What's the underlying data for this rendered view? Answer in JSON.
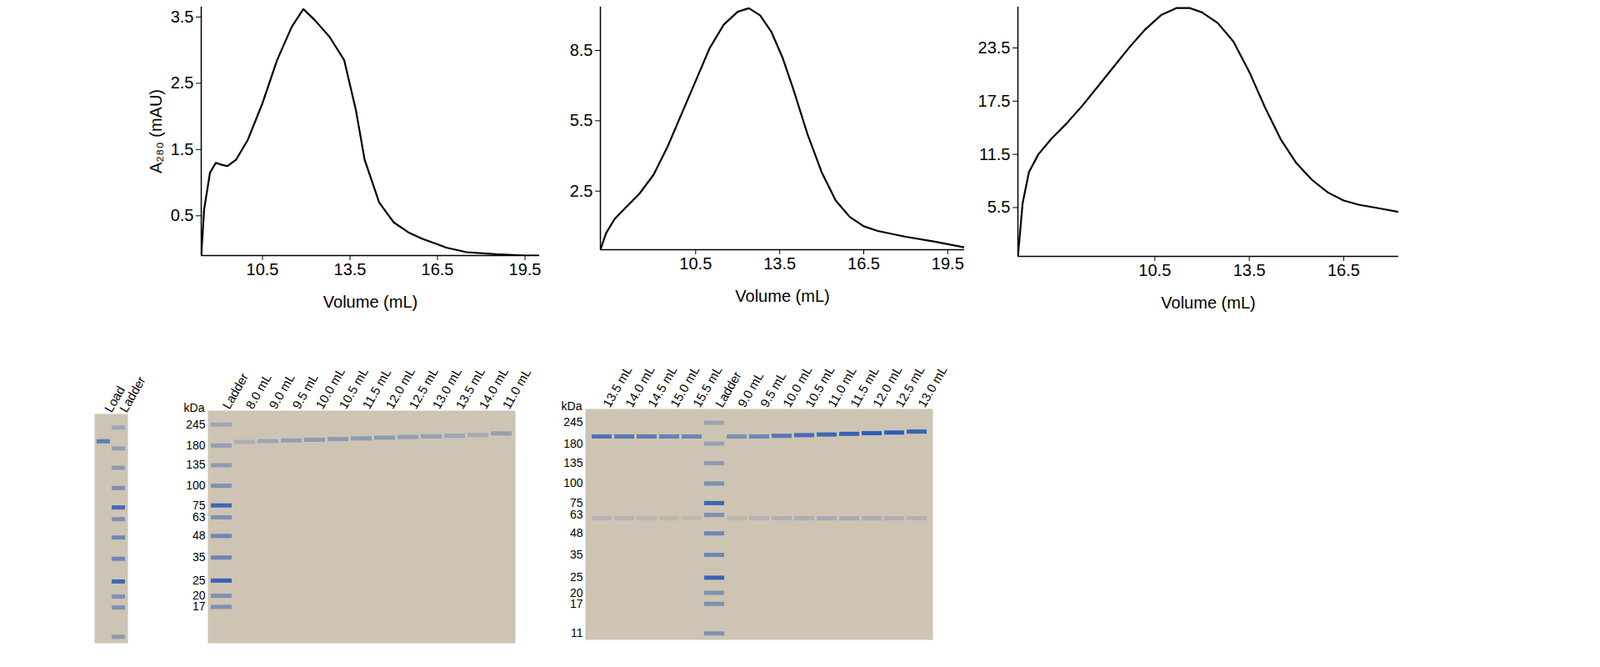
{
  "chart_data": [
    {
      "type": "line",
      "xlabel": "Volume (mL)",
      "ylabel": "A₂₈₀ (mAU)",
      "color": "#000000",
      "x": [
        8.4,
        8.5,
        8.7,
        8.9,
        9.1,
        9.3,
        9.6,
        10.0,
        10.5,
        11.0,
        11.5,
        11.9,
        12.3,
        12.8,
        13.3,
        13.7,
        14.0,
        14.5,
        15.0,
        15.5,
        16.0,
        16.5,
        16.8,
        17.5,
        18.5,
        19.5,
        20.0
      ],
      "values": [
        -0.1,
        0.6,
        1.15,
        1.3,
        1.27,
        1.25,
        1.35,
        1.65,
        2.2,
        2.85,
        3.35,
        3.62,
        3.45,
        3.2,
        2.85,
        2.1,
        1.35,
        0.7,
        0.4,
        0.25,
        0.15,
        0.07,
        0.02,
        -0.05,
        -0.08,
        -0.1,
        -0.1
      ],
      "xlim": [
        8.4,
        20.0
      ],
      "ylim": [
        -0.1,
        3.65
      ],
      "xticks": [
        10.5,
        13.5,
        16.5,
        19.5
      ],
      "yticks": [
        0.5,
        1.5,
        2.5,
        3.5
      ]
    },
    {
      "type": "line",
      "xlabel": "Volume (mL)",
      "color": "#000000",
      "x": [
        7.1,
        7.3,
        7.6,
        8.0,
        8.5,
        9.0,
        9.5,
        10.0,
        10.5,
        11.0,
        11.5,
        12.0,
        12.4,
        12.8,
        13.2,
        13.6,
        14.0,
        14.5,
        15.0,
        15.5,
        16.0,
        16.5,
        17.0,
        18.0,
        19.0,
        20.1
      ],
      "values": [
        0,
        0.7,
        1.3,
        1.8,
        2.4,
        3.2,
        4.4,
        5.8,
        7.2,
        8.6,
        9.6,
        10.15,
        10.3,
        10.0,
        9.3,
        8.2,
        6.8,
        4.9,
        3.3,
        2.1,
        1.4,
        1.0,
        0.8,
        0.55,
        0.35,
        0.1
      ],
      "xlim": [
        7.1,
        20.1
      ],
      "ylim": [
        0,
        10.35
      ],
      "xticks": [
        10.5,
        13.5,
        16.5,
        19.5
      ],
      "yticks": [
        2.5,
        5.5,
        8.5
      ]
    },
    {
      "type": "line",
      "xlabel": "Volume (mL)",
      "color": "#000000",
      "x": [
        6.15,
        6.3,
        6.5,
        6.8,
        7.2,
        7.7,
        8.2,
        8.7,
        9.2,
        9.7,
        10.2,
        10.7,
        11.2,
        11.6,
        12.0,
        12.5,
        13.0,
        13.5,
        14.0,
        14.5,
        15.0,
        15.5,
        16.0,
        16.5,
        17.0,
        17.5,
        18.25
      ],
      "values": [
        0,
        6,
        9.5,
        11.5,
        13.2,
        15,
        17,
        19.2,
        21.4,
        23.6,
        25.6,
        27.2,
        28,
        28,
        27.5,
        26.3,
        24.2,
        20.8,
        16.8,
        13.2,
        10.5,
        8.6,
        7.2,
        6.3,
        5.8,
        5.5,
        5.0
      ],
      "xlim": [
        6.15,
        18.25
      ],
      "ylim": [
        0,
        28.1
      ],
      "xticks": [
        10.5,
        13.5,
        16.5
      ],
      "yticks": [
        5.5,
        11.5,
        17.5,
        23.5
      ]
    },
    {
      "type": "gel",
      "log": "y",
      "tick_labels": "x",
      "color": "#2f5db5",
      "categories": [
        "Load",
        "Ladder"
      ],
      "bands": [
        [
          [
            200,
            0.7
          ]
        ],
        [
          [
            245,
            0.3
          ],
          [
            180,
            0.35
          ],
          [
            135,
            0.4
          ],
          [
            100,
            0.5
          ],
          [
            75,
            0.85
          ],
          [
            63,
            0.5
          ],
          [
            48,
            0.6
          ],
          [
            35,
            0.6
          ],
          [
            25,
            0.9
          ],
          [
            20,
            0.5
          ],
          [
            17,
            0.5
          ],
          [
            11,
            0.4
          ]
        ]
      ],
      "ylim": [
        10,
        300
      ],
      "yticks": []
    },
    {
      "type": "gel",
      "log": "y",
      "ylabel": "kDa",
      "color": "#2f5db5",
      "categories": [
        "Ladder",
        "8.0 mL",
        "9.0 mL",
        "9.5 mL",
        "10.0 mL",
        "10.5 mL",
        "11.5 mL",
        "12.0 mL",
        "12.5 mL",
        "13.0 mL",
        "13.5 mL",
        "14.0 mL",
        "11.0 mL"
      ],
      "bands": [
        [
          [
            245,
            0.3
          ],
          [
            180,
            0.35
          ],
          [
            135,
            0.4
          ],
          [
            100,
            0.5
          ],
          [
            75,
            0.9
          ],
          [
            63,
            0.5
          ],
          [
            48,
            0.6
          ],
          [
            35,
            0.6
          ],
          [
            25,
            0.95
          ],
          [
            20,
            0.5
          ],
          [
            17,
            0.5
          ]
        ],
        [
          [
            190,
            0.2
          ]
        ],
        [
          [
            192,
            0.3
          ]
        ],
        [
          [
            194,
            0.35
          ]
        ],
        [
          [
            196,
            0.4
          ]
        ],
        [
          [
            198,
            0.4
          ]
        ],
        [
          [
            200,
            0.4
          ]
        ],
        [
          [
            202,
            0.4
          ]
        ],
        [
          [
            204,
            0.35
          ]
        ],
        [
          [
            206,
            0.35
          ]
        ],
        [
          [
            208,
            0.3
          ]
        ],
        [
          [
            210,
            0.25
          ]
        ],
        [
          [
            215,
            0.35
          ]
        ]
      ],
      "ylim": [
        10,
        300
      ],
      "yticks": [
        245,
        180,
        135,
        100,
        75,
        63,
        48,
        35,
        25,
        20,
        17
      ]
    },
    {
      "type": "gel",
      "log": "y",
      "ylabel": "kDa",
      "color": "#2f5db5",
      "categories": [
        "13.5 mL",
        "14.0 mL",
        "14.5 mL",
        "15.0 mL",
        "15.5 mL",
        "Ladder",
        "9.0 mL",
        "9.5 mL",
        "10.0 mL",
        "10.5 mL",
        "11.0 mL",
        "11.5 mL",
        "12.0 mL",
        "12.5 mL",
        "13.0 mL"
      ],
      "bands": [
        [
          [
            200,
            0.8
          ],
          [
            60,
            0.15
          ]
        ],
        [
          [
            200,
            0.75
          ],
          [
            60,
            0.15
          ]
        ],
        [
          [
            200,
            0.7
          ],
          [
            60,
            0.12
          ]
        ],
        [
          [
            200,
            0.65
          ],
          [
            60,
            0.12
          ]
        ],
        [
          [
            200,
            0.6
          ],
          [
            60,
            0.1
          ]
        ],
        [
          [
            245,
            0.3
          ],
          [
            180,
            0.35
          ],
          [
            135,
            0.4
          ],
          [
            100,
            0.5
          ],
          [
            75,
            0.9
          ],
          [
            63,
            0.5
          ],
          [
            48,
            0.6
          ],
          [
            35,
            0.6
          ],
          [
            25,
            0.95
          ],
          [
            20,
            0.5
          ],
          [
            17,
            0.5
          ],
          [
            11,
            0.5
          ]
        ],
        [
          [
            200,
            0.5
          ],
          [
            60,
            0.12
          ]
        ],
        [
          [
            200,
            0.6
          ],
          [
            60,
            0.15
          ]
        ],
        [
          [
            202,
            0.75
          ],
          [
            60,
            0.2
          ]
        ],
        [
          [
            204,
            0.85
          ],
          [
            60,
            0.22
          ]
        ],
        [
          [
            206,
            0.9
          ],
          [
            60,
            0.25
          ]
        ],
        [
          [
            208,
            0.95
          ],
          [
            60,
            0.25
          ]
        ],
        [
          [
            210,
            1.0
          ],
          [
            60,
            0.22
          ]
        ],
        [
          [
            212,
            1.0
          ],
          [
            60,
            0.2
          ]
        ],
        [
          [
            215,
            0.95
          ],
          [
            60,
            0.18
          ]
        ]
      ],
      "ylim": [
        10,
        300
      ],
      "yticks": [
        245,
        180,
        135,
        100,
        75,
        63,
        48,
        35,
        25,
        20,
        17,
        11
      ]
    }
  ]
}
